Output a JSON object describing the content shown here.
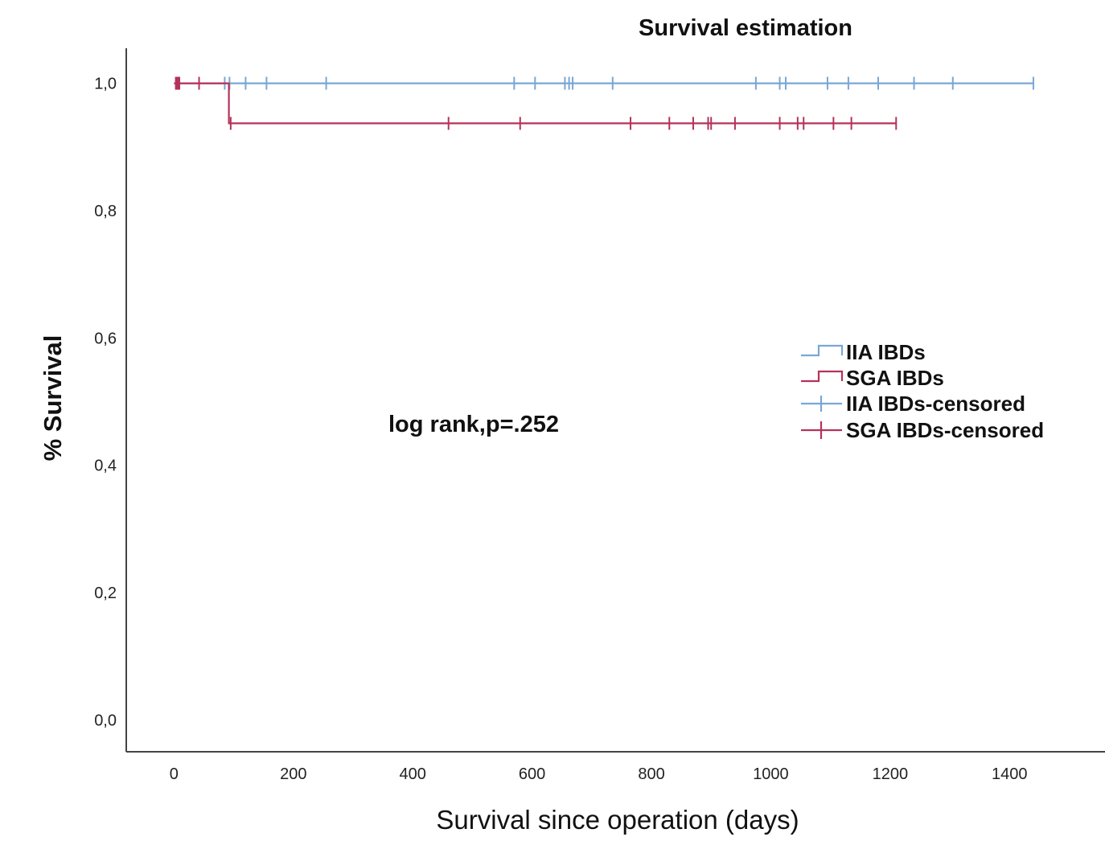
{
  "chart_data": {
    "type": "line",
    "title": "Survival estimation",
    "xlabel": "Survival since operation (days)",
    "ylabel": "% Survival",
    "xlim": [
      -80,
      1560
    ],
    "ylim": [
      -0.05,
      1.055
    ],
    "x_ticks": [
      0,
      200,
      400,
      600,
      800,
      1000,
      1200,
      1400
    ],
    "x_tick_labels": [
      "0",
      "200",
      "400",
      "600",
      "800",
      "1000",
      "1200",
      "1400"
    ],
    "y_ticks": [
      0.0,
      0.2,
      0.4,
      0.6,
      0.8,
      1.0
    ],
    "y_tick_labels": [
      "0,0",
      "0,2",
      "0,4",
      "0,6",
      "0,8",
      "1,0"
    ],
    "grid": false,
    "legend_position": "right",
    "annotation": "log rank,p=.252",
    "series": [
      {
        "name": "IIA IBDs",
        "color": "#7aa6d6",
        "steps": [
          [
            0,
            1.0
          ],
          [
            1440,
            1.0
          ]
        ],
        "censored_name": "IIA IBDs-censored",
        "censored": [
          85,
          93,
          120,
          155,
          255,
          570,
          605,
          655,
          662,
          668,
          735,
          975,
          1015,
          1025,
          1095,
          1130,
          1180,
          1240,
          1305,
          1440
        ]
      },
      {
        "name": "SGA IBDs",
        "color": "#b5325a",
        "steps": [
          [
            0,
            1.0
          ],
          [
            92,
            1.0
          ],
          [
            92,
            0.937
          ],
          [
            1210,
            0.937
          ]
        ],
        "censored_name": "SGA IBDs-censored",
        "censored": [
          3,
          5,
          7,
          9,
          42,
          95,
          460,
          580,
          765,
          830,
          870,
          895,
          900,
          940,
          1015,
          1045,
          1055,
          1105,
          1135,
          1210
        ]
      }
    ]
  }
}
